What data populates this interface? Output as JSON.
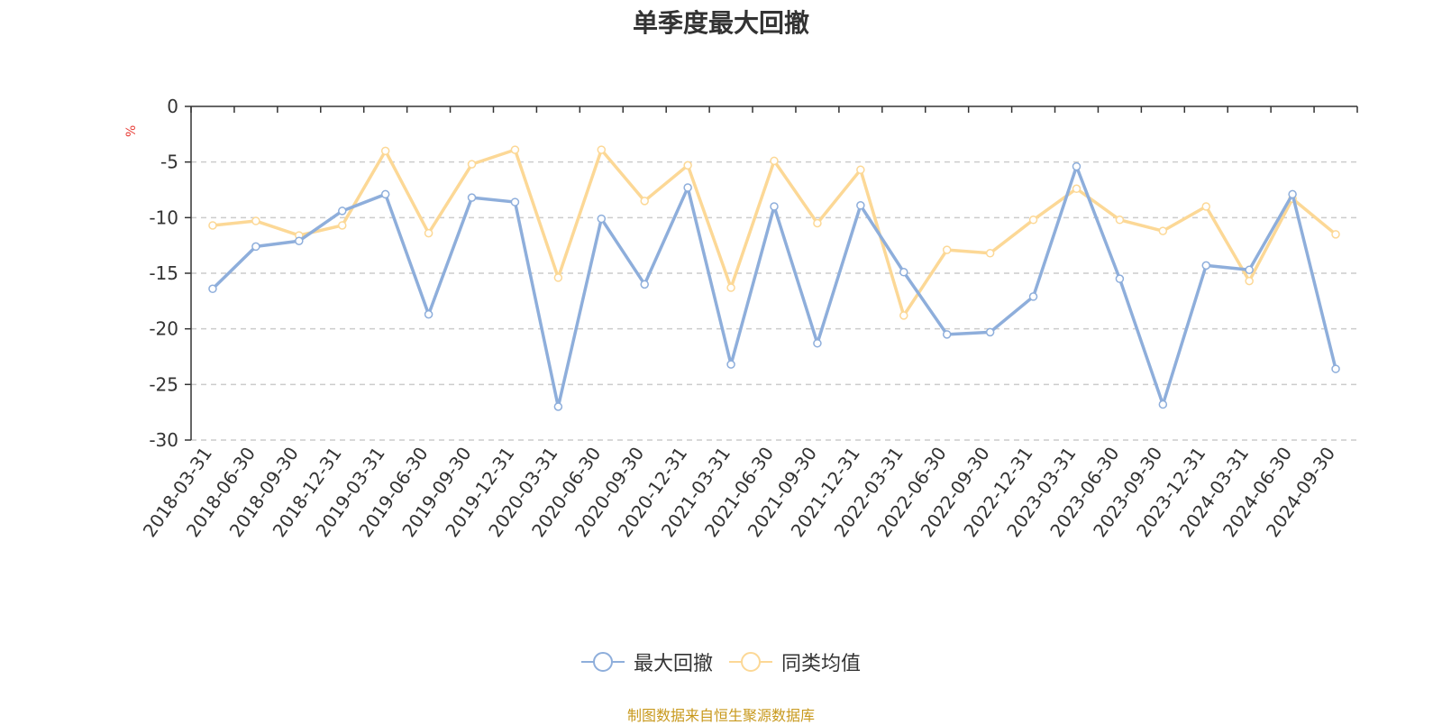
{
  "title": "单季度最大回撤",
  "unit": "%",
  "source_note": "制图数据来自恒生聚源数据库",
  "colors": {
    "drawdown": "#8eaedb",
    "peer_avg": "#fcd896",
    "grid": "#cccccc",
    "axis": "#333333"
  },
  "legend": [
    {
      "label": "最大回撤",
      "color": "#8eaedb"
    },
    {
      "label": "同类均值",
      "color": "#fcd896"
    }
  ],
  "chart_data": {
    "type": "line",
    "title": "单季度最大回撤",
    "ylabel": "%",
    "ylim": [
      -30,
      0
    ],
    "yticks": [
      0,
      -5,
      -10,
      -15,
      -20,
      -25,
      -30
    ],
    "grid": true,
    "legend_position": "bottom",
    "categories": [
      "2018-03-31",
      "2018-06-30",
      "2018-09-30",
      "2018-12-31",
      "2019-03-31",
      "2019-06-30",
      "2019-09-30",
      "2019-12-31",
      "2020-03-31",
      "2020-06-30",
      "2020-09-30",
      "2020-12-31",
      "2021-03-31",
      "2021-06-30",
      "2021-09-30",
      "2021-12-31",
      "2022-03-31",
      "2022-06-30",
      "2022-09-30",
      "2022-12-31",
      "2023-03-31",
      "2023-06-30",
      "2023-09-30",
      "2023-12-31",
      "2024-03-31",
      "2024-06-30",
      "2024-09-30"
    ],
    "series": [
      {
        "name": "最大回撤",
        "color": "#8eaedb",
        "values": [
          -16.4,
          -12.6,
          -12.1,
          -9.4,
          -7.9,
          -18.7,
          -8.2,
          -8.6,
          -27.0,
          -10.1,
          -16.0,
          -7.3,
          -23.2,
          -9.0,
          -21.3,
          -8.9,
          -14.9,
          -20.5,
          -20.3,
          -17.1,
          -5.4,
          -15.5,
          -26.8,
          -14.3,
          -14.7,
          -7.9,
          -23.6
        ]
      },
      {
        "name": "同类均值",
        "color": "#fcd896",
        "values": [
          -10.7,
          -10.3,
          -11.6,
          -10.7,
          -4.0,
          -11.4,
          -5.2,
          -3.9,
          -15.4,
          -3.9,
          -8.5,
          -5.3,
          -16.3,
          -4.9,
          -10.5,
          -5.7,
          -18.8,
          -12.9,
          -13.2,
          -10.2,
          -7.4,
          -10.2,
          -11.2,
          -9.0,
          -15.7,
          -8.3,
          -11.5
        ]
      }
    ]
  }
}
